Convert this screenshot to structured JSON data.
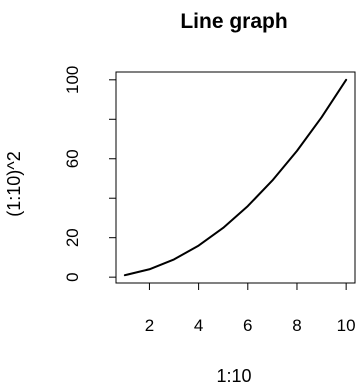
{
  "chart_data": {
    "type": "line",
    "title": "Line graph",
    "xlabel": "1:10",
    "ylabel": "(1:10)^2",
    "x": [
      1,
      2,
      3,
      4,
      5,
      6,
      7,
      8,
      9,
      10
    ],
    "series": [
      {
        "values": [
          1,
          4,
          9,
          16,
          25,
          36,
          49,
          64,
          81,
          100
        ],
        "color": "#000000"
      }
    ],
    "xlim": [
      0.64,
      10.36
    ],
    "ylim": [
      -2.96,
      103.96
    ],
    "x_ticks": [
      2,
      4,
      6,
      8,
      10
    ],
    "x_tick_labels": [
      "2",
      "4",
      "6",
      "8",
      "10"
    ],
    "y_ticks": [
      0,
      20,
      40,
      60,
      80,
      100
    ],
    "y_tick_labels": [
      "0",
      "20",
      "",
      "60",
      "",
      "100"
    ],
    "grid": false,
    "legend": "none"
  }
}
